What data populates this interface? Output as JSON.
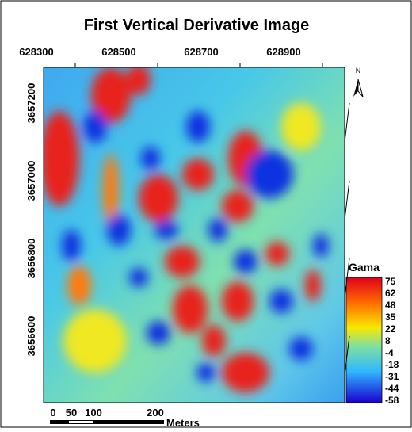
{
  "title": "First Vertical Derivative Image",
  "map": {
    "x_ticks": [
      "628300",
      "628500",
      "628700",
      "628900"
    ],
    "y_ticks": [
      "3657200",
      "3657000",
      "3656800",
      "3656600"
    ]
  },
  "north_label": "N",
  "legend": {
    "title": "Gama",
    "ticks": [
      "75",
      "62",
      "48",
      "35",
      "22",
      "8",
      "-4",
      "-18",
      "-31",
      "-44",
      "-58"
    ]
  },
  "scale_bar": {
    "labels": [
      "0",
      "50",
      "100",
      "200"
    ],
    "unit": "Meters"
  }
}
